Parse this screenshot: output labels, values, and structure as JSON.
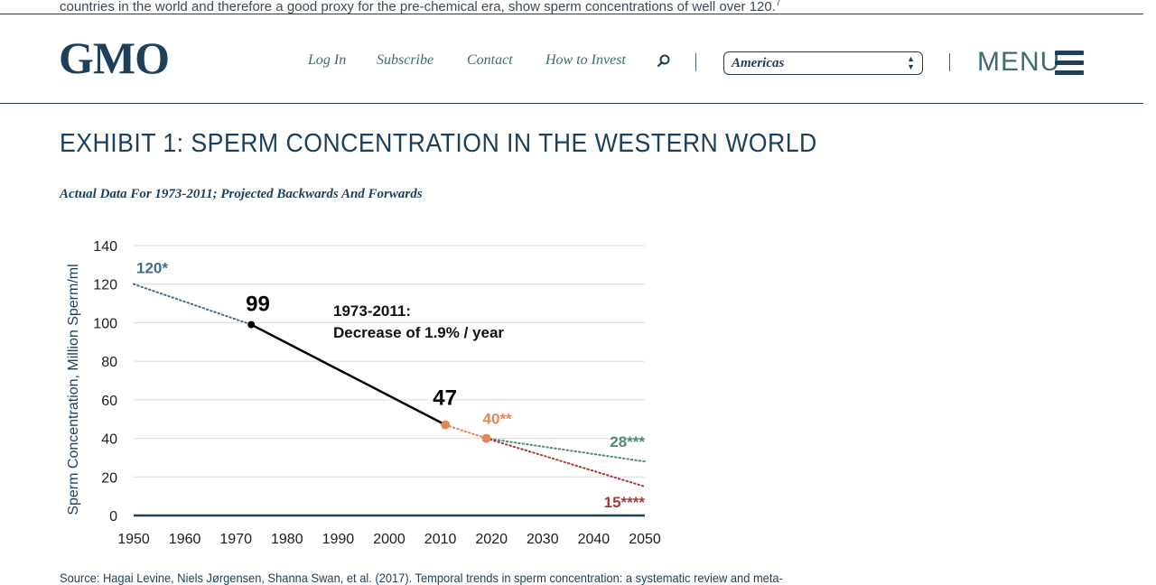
{
  "page": {
    "top_text": "countries in the world and therefore a good proxy for the pre-chemical era, show sperm concentrations of well over 120.",
    "top_text_footnote": "7"
  },
  "header": {
    "logo": "GMO",
    "nav": [
      "Log In",
      "Subscribe",
      "Contact",
      "How to Invest"
    ],
    "search_icon": "search-icon",
    "region_select": {
      "value": "Americas"
    },
    "menu_label": "MENU",
    "menu_icon": "hamburger-icon"
  },
  "exhibit": {
    "title": "EXHIBIT 1: SPERM CONCENTRATION IN THE WESTERN WORLD",
    "subtitle": "Actual Data For 1973-2011; Projected Backwards And Forwards"
  },
  "chart_data": {
    "type": "line",
    "ylabel": "Sperm Concentration, Million Sperm/ml",
    "xlim": [
      1950,
      2050
    ],
    "ylim": [
      0,
      140
    ],
    "x_ticks": [
      "1950",
      "1960",
      "1970",
      "1980",
      "1990",
      "2000",
      "2010",
      "2020",
      "2030",
      "2040",
      "2050"
    ],
    "y_ticks": [
      "0",
      "20",
      "40",
      "60",
      "80",
      "100",
      "120",
      "140"
    ],
    "grid": true,
    "annotation": [
      "1973-2011:",
      "Decrease of 1.9% / year"
    ],
    "series": [
      {
        "style": "dotted",
        "color": "#3d6f86",
        "x": [
          1950,
          1973
        ],
        "y": [
          120,
          99
        ]
      },
      {
        "style": "solid",
        "color": "#000000",
        "x": [
          1973,
          2011
        ],
        "y": [
          99,
          47
        ]
      },
      {
        "style": "dotted",
        "color": "#e0875a",
        "x": [
          2011,
          2019
        ],
        "y": [
          47,
          40
        ]
      },
      {
        "style": "dotted",
        "color": "#4d8a74",
        "x": [
          2019,
          2050
        ],
        "y": [
          40,
          28
        ]
      },
      {
        "style": "dotted",
        "color": "#a63a3a",
        "x": [
          2019,
          2050
        ],
        "y": [
          40,
          15
        ]
      }
    ],
    "points": [
      {
        "x": 1973,
        "y": 99,
        "color": "#000000"
      },
      {
        "x": 2011,
        "y": 47,
        "color": "#e0875a"
      },
      {
        "x": 2019,
        "y": 40,
        "color": "#e0875a"
      }
    ],
    "labels": [
      {
        "text": "120*",
        "x": 1950,
        "y": 120,
        "color": "#3d6f86"
      },
      {
        "text": "99",
        "x": 1973,
        "y": 99,
        "color": "#000000"
      },
      {
        "text": "47",
        "x": 2011,
        "y": 47,
        "color": "#000000"
      },
      {
        "text": "40**",
        "x": 2019,
        "y": 40,
        "color": "#e0875a"
      },
      {
        "text": "28***",
        "x": 2050,
        "y": 28,
        "color": "#4d8a74"
      },
      {
        "text": "15****",
        "x": 2050,
        "y": 15,
        "color": "#a63a3a"
      }
    ]
  },
  "source": "Source: Hagai Levine, Niels Jørgensen, Shanna Swan, et al. (2017). Temporal trends in sperm concentration: a systematic review and meta-"
}
